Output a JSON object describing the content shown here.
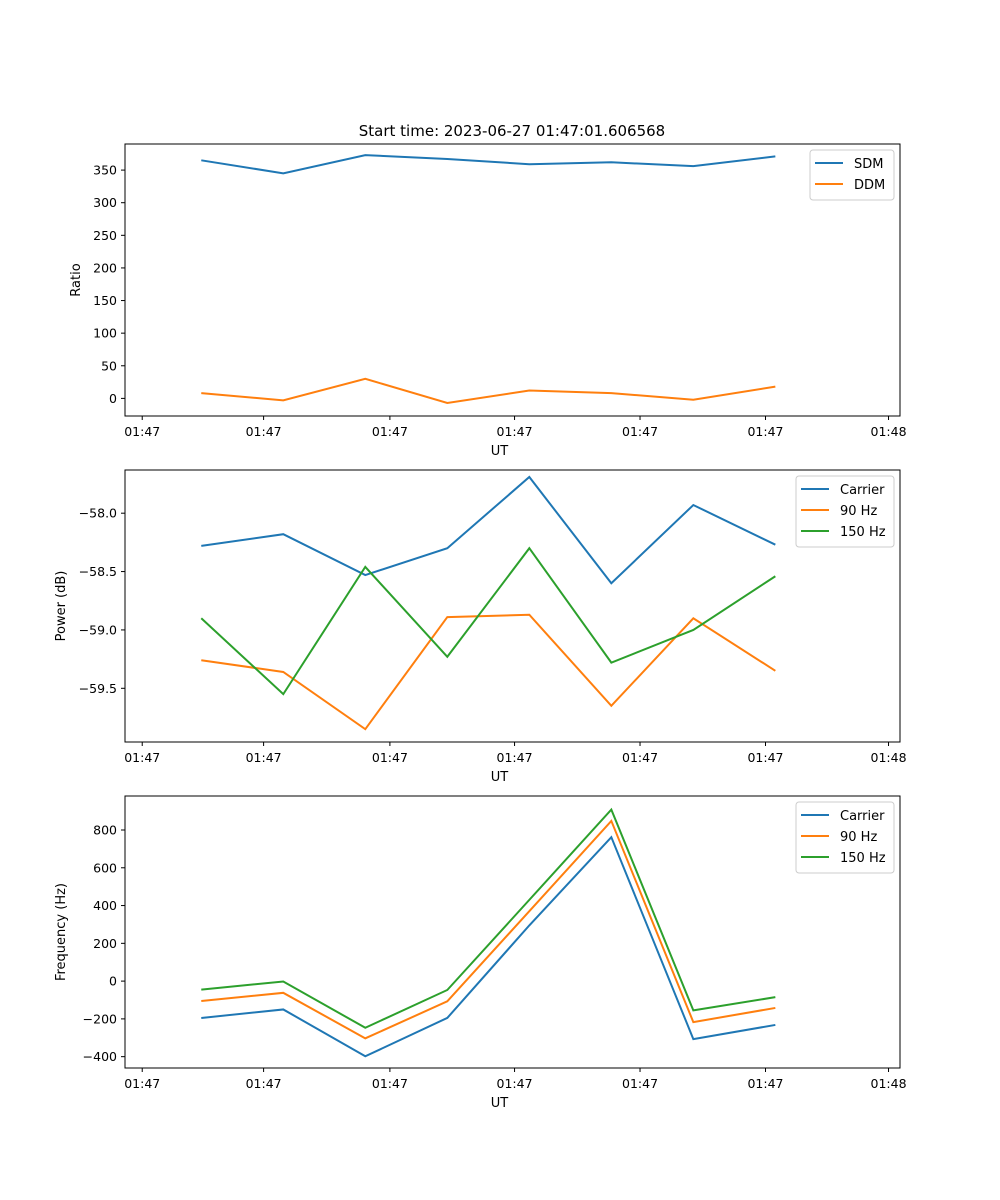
{
  "figure": {
    "title": "Start time: 2023-06-27 01:47:01.606568"
  },
  "chart_data": [
    {
      "type": "line",
      "xlabel": "UT",
      "ylabel": "Ratio",
      "x_tick_labels": [
        "01:47",
        "01:47",
        "01:47",
        "01:47",
        "01:47",
        "01:47",
        "01:48"
      ],
      "y_ticks": [
        0,
        50,
        100,
        150,
        200,
        250,
        300,
        350
      ],
      "ylim": [
        -27,
        390
      ],
      "legend": "top-right",
      "grid": false,
      "series": [
        {
          "name": "SDM",
          "color": "#1f77b4",
          "values": [
            365,
            345,
            373,
            367,
            359,
            362,
            356,
            371
          ]
        },
        {
          "name": "DDM",
          "color": "#ff7f0e",
          "values": [
            8,
            -3,
            30,
            -7,
            12,
            8,
            -2,
            18
          ]
        }
      ]
    },
    {
      "type": "line",
      "xlabel": "UT",
      "ylabel": "Power (dB)",
      "x_tick_labels": [
        "01:47",
        "01:47",
        "01:47",
        "01:47",
        "01:47",
        "01:47",
        "01:48"
      ],
      "y_ticks": [
        -59.5,
        -59.0,
        -58.5,
        -58.0
      ],
      "y_tick_labels": [
        "−59.5",
        "−59.0",
        "−58.5",
        "−58.0"
      ],
      "ylim": [
        -59.96,
        -57.63
      ],
      "legend": "top-right",
      "grid": false,
      "series": [
        {
          "name": "Carrier",
          "color": "#1f77b4",
          "values": [
            -58.28,
            -58.18,
            -58.53,
            -58.3,
            -57.69,
            -58.6,
            -57.93,
            -58.27
          ]
        },
        {
          "name": "90 Hz",
          "color": "#ff7f0e",
          "values": [
            -59.26,
            -59.36,
            -59.85,
            -58.89,
            -58.87,
            -59.65,
            -58.9,
            -59.35
          ]
        },
        {
          "name": "150 Hz",
          "color": "#2ca02c",
          "values": [
            -58.9,
            -59.55,
            -58.46,
            -59.23,
            -58.3,
            -59.28,
            -59.0,
            -58.54
          ]
        }
      ]
    },
    {
      "type": "line",
      "xlabel": "UT",
      "ylabel": "Frequency (Hz)",
      "x_tick_labels": [
        "01:47",
        "01:47",
        "01:47",
        "01:47",
        "01:47",
        "01:47",
        "01:48"
      ],
      "y_ticks": [
        -400,
        -200,
        0,
        200,
        400,
        600,
        800
      ],
      "y_tick_labels": [
        "−400",
        "−200",
        "0",
        "200",
        "400",
        "600",
        "800"
      ],
      "ylim": [
        -460,
        980
      ],
      "legend": "top-right",
      "grid": false,
      "series": [
        {
          "name": "Carrier",
          "color": "#1f77b4",
          "values": [
            -195,
            -150,
            -398,
            -195,
            295,
            762,
            -307,
            -232
          ]
        },
        {
          "name": "90 Hz",
          "color": "#ff7f0e",
          "values": [
            -105,
            -62,
            -303,
            -107,
            370,
            848,
            -217,
            -142
          ]
        },
        {
          "name": "150 Hz",
          "color": "#2ca02c",
          "values": [
            -45,
            -2,
            -247,
            -47,
            430,
            908,
            -155,
            -85
          ]
        }
      ]
    }
  ]
}
